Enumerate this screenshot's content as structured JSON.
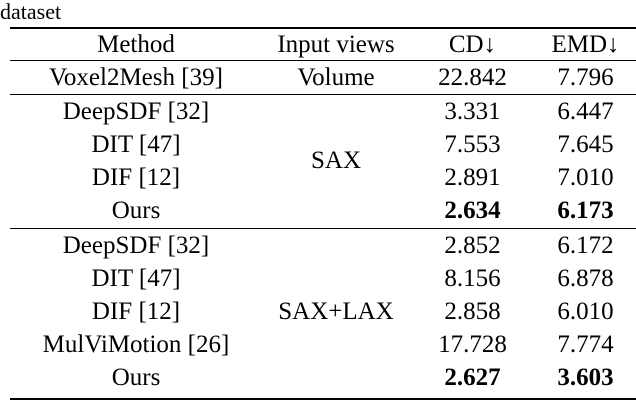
{
  "caption": "dataset",
  "header": [
    "Method",
    "Input views",
    "CD↓",
    "EMD↓"
  ],
  "groups": [
    {
      "input_views": "Volume",
      "rows": [
        {
          "method": "Voxel2Mesh [39]",
          "cd": "22.842",
          "emd": "7.796",
          "bold": false
        }
      ]
    },
    {
      "input_views": "SAX",
      "rows": [
        {
          "method": "DeepSDF [32]",
          "cd": "3.331",
          "emd": "6.447",
          "bold": false
        },
        {
          "method": "DIT [47]",
          "cd": "7.553",
          "emd": "7.645",
          "bold": false
        },
        {
          "method": "DIF [12]",
          "cd": "2.891",
          "emd": "7.010",
          "bold": false
        },
        {
          "method": "Ours",
          "cd": "2.634",
          "emd": "6.173",
          "bold": true
        }
      ]
    },
    {
      "input_views": "SAX+LAX",
      "rows": [
        {
          "method": "DeepSDF [32]",
          "cd": "2.852",
          "emd": "6.172",
          "bold": false
        },
        {
          "method": "DIT [47]",
          "cd": "8.156",
          "emd": "6.878",
          "bold": false
        },
        {
          "method": "DIF [12]",
          "cd": "2.858",
          "emd": "6.010",
          "bold": false
        },
        {
          "method": "MulViMotion [26]",
          "cd": "17.728",
          "emd": "7.774",
          "bold": false
        },
        {
          "method": "Ours",
          "cd": "2.627",
          "emd": "3.603",
          "bold": true
        }
      ]
    }
  ]
}
